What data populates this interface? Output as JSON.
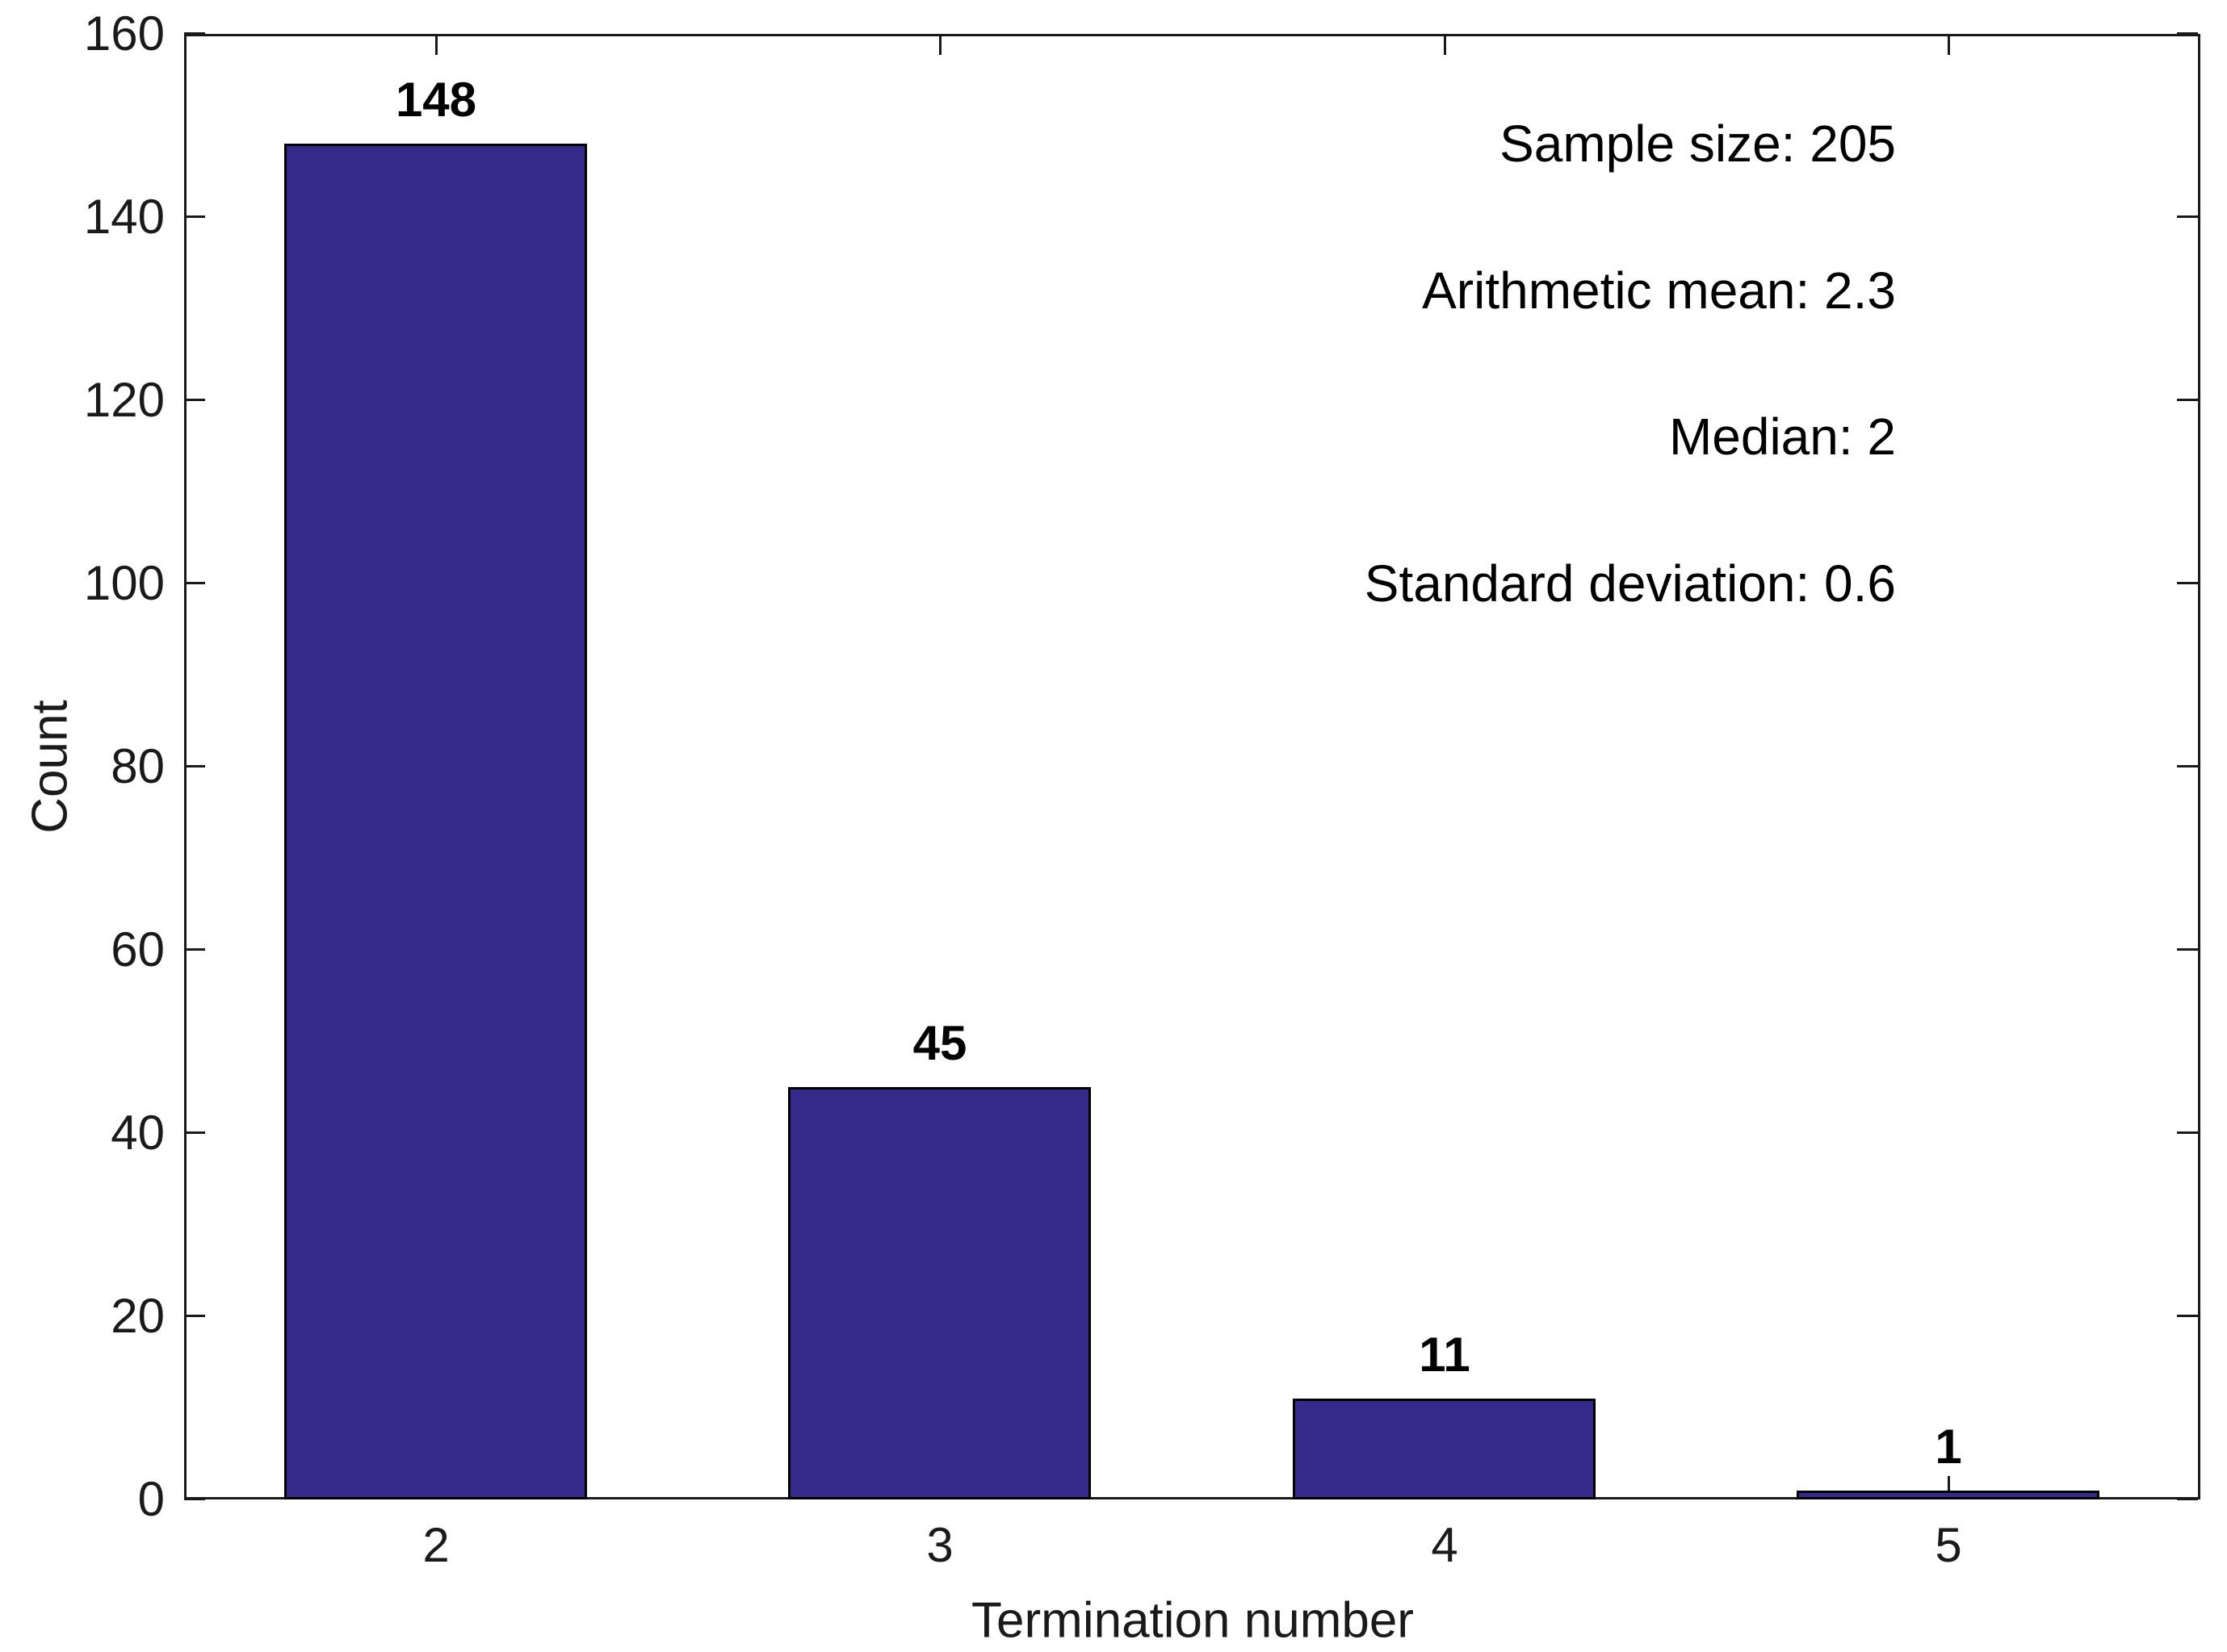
{
  "chart_data": {
    "type": "bar",
    "categories": [
      "2",
      "3",
      "4",
      "5"
    ],
    "values": [
      148,
      45,
      11,
      1
    ],
    "bar_value_labels": [
      "148",
      "45",
      "11",
      "1"
    ],
    "xlabel": "Termination number",
    "ylabel": "Count",
    "ylim": [
      0,
      160
    ],
    "yticks": [
      0,
      20,
      40,
      60,
      80,
      100,
      120,
      140,
      160
    ],
    "ytick_labels": [
      "0",
      "20",
      "40",
      "60",
      "80",
      "100",
      "120",
      "140",
      "160"
    ],
    "grid": false,
    "legend_position": "none",
    "bar_color": "#352a8a",
    "bar_edge_color": "#000000",
    "axis_color": "#1a1a1a",
    "annotations": [
      "Sample size: 205",
      "Arithmetic mean: 2.3",
      "Median: 2",
      "Standard deviation: 0.6"
    ],
    "stats": {
      "sample_size": "205",
      "arithmetic_mean": "2.3",
      "median": "2",
      "standard_deviation": "0.6"
    }
  }
}
